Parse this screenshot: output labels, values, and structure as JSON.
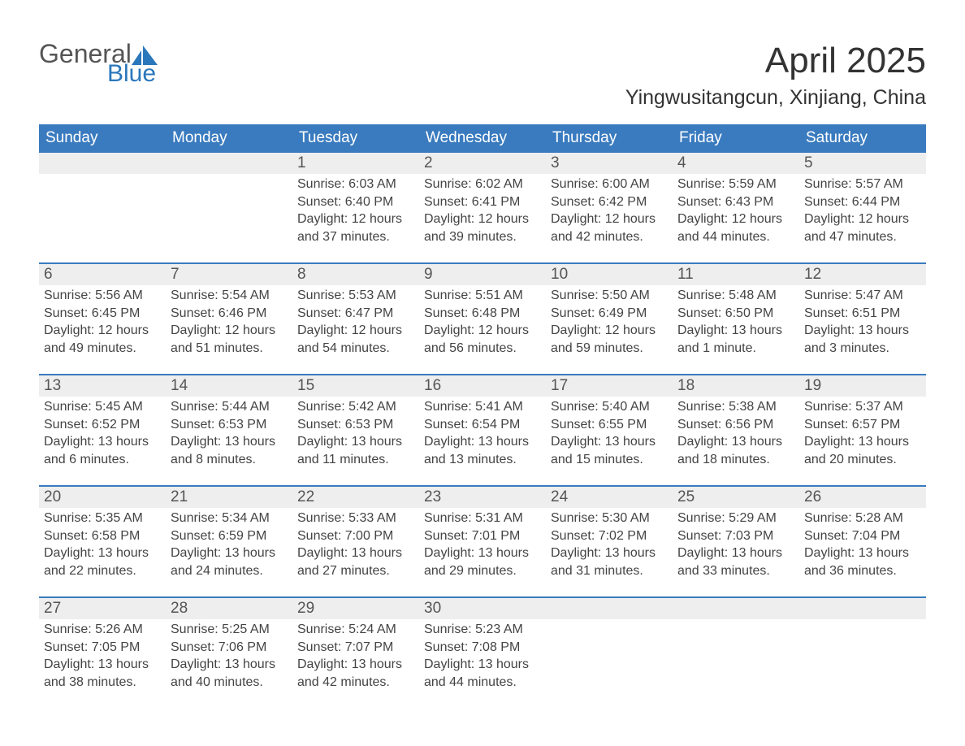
{
  "logo": {
    "word1": "General",
    "word2": "Blue",
    "icon_color": "#2a77bb",
    "text_gray": "#555555"
  },
  "header": {
    "title": "April 2025",
    "location": "Yingwusitangcun, Xinjiang, China",
    "title_fontsize": 44,
    "location_fontsize": 25,
    "title_color": "#333333"
  },
  "colors": {
    "header_row_bg": "#3a7bbf",
    "header_row_text": "#ffffff",
    "daynum_bg": "#eeeeee",
    "daynum_text": "#555555",
    "week_divider": "#3a7bbf",
    "body_text": "#444444",
    "page_bg": "#ffffff"
  },
  "fontsizes": {
    "dow": 19,
    "daynum": 19,
    "body": 16
  },
  "dow": [
    "Sunday",
    "Monday",
    "Tuesday",
    "Wednesday",
    "Thursday",
    "Friday",
    "Saturday"
  ],
  "weeks": [
    [
      null,
      null,
      {
        "n": "1",
        "sr": "Sunrise: 6:03 AM",
        "ss": "Sunset: 6:40 PM",
        "dl": "Daylight: 12 hours and 37 minutes."
      },
      {
        "n": "2",
        "sr": "Sunrise: 6:02 AM",
        "ss": "Sunset: 6:41 PM",
        "dl": "Daylight: 12 hours and 39 minutes."
      },
      {
        "n": "3",
        "sr": "Sunrise: 6:00 AM",
        "ss": "Sunset: 6:42 PM",
        "dl": "Daylight: 12 hours and 42 minutes."
      },
      {
        "n": "4",
        "sr": "Sunrise: 5:59 AM",
        "ss": "Sunset: 6:43 PM",
        "dl": "Daylight: 12 hours and 44 minutes."
      },
      {
        "n": "5",
        "sr": "Sunrise: 5:57 AM",
        "ss": "Sunset: 6:44 PM",
        "dl": "Daylight: 12 hours and 47 minutes."
      }
    ],
    [
      {
        "n": "6",
        "sr": "Sunrise: 5:56 AM",
        "ss": "Sunset: 6:45 PM",
        "dl": "Daylight: 12 hours and 49 minutes."
      },
      {
        "n": "7",
        "sr": "Sunrise: 5:54 AM",
        "ss": "Sunset: 6:46 PM",
        "dl": "Daylight: 12 hours and 51 minutes."
      },
      {
        "n": "8",
        "sr": "Sunrise: 5:53 AM",
        "ss": "Sunset: 6:47 PM",
        "dl": "Daylight: 12 hours and 54 minutes."
      },
      {
        "n": "9",
        "sr": "Sunrise: 5:51 AM",
        "ss": "Sunset: 6:48 PM",
        "dl": "Daylight: 12 hours and 56 minutes."
      },
      {
        "n": "10",
        "sr": "Sunrise: 5:50 AM",
        "ss": "Sunset: 6:49 PM",
        "dl": "Daylight: 12 hours and 59 minutes."
      },
      {
        "n": "11",
        "sr": "Sunrise: 5:48 AM",
        "ss": "Sunset: 6:50 PM",
        "dl": "Daylight: 13 hours and 1 minute."
      },
      {
        "n": "12",
        "sr": "Sunrise: 5:47 AM",
        "ss": "Sunset: 6:51 PM",
        "dl": "Daylight: 13 hours and 3 minutes."
      }
    ],
    [
      {
        "n": "13",
        "sr": "Sunrise: 5:45 AM",
        "ss": "Sunset: 6:52 PM",
        "dl": "Daylight: 13 hours and 6 minutes."
      },
      {
        "n": "14",
        "sr": "Sunrise: 5:44 AM",
        "ss": "Sunset: 6:53 PM",
        "dl": "Daylight: 13 hours and 8 minutes."
      },
      {
        "n": "15",
        "sr": "Sunrise: 5:42 AM",
        "ss": "Sunset: 6:53 PM",
        "dl": "Daylight: 13 hours and 11 minutes."
      },
      {
        "n": "16",
        "sr": "Sunrise: 5:41 AM",
        "ss": "Sunset: 6:54 PM",
        "dl": "Daylight: 13 hours and 13 minutes."
      },
      {
        "n": "17",
        "sr": "Sunrise: 5:40 AM",
        "ss": "Sunset: 6:55 PM",
        "dl": "Daylight: 13 hours and 15 minutes."
      },
      {
        "n": "18",
        "sr": "Sunrise: 5:38 AM",
        "ss": "Sunset: 6:56 PM",
        "dl": "Daylight: 13 hours and 18 minutes."
      },
      {
        "n": "19",
        "sr": "Sunrise: 5:37 AM",
        "ss": "Sunset: 6:57 PM",
        "dl": "Daylight: 13 hours and 20 minutes."
      }
    ],
    [
      {
        "n": "20",
        "sr": "Sunrise: 5:35 AM",
        "ss": "Sunset: 6:58 PM",
        "dl": "Daylight: 13 hours and 22 minutes."
      },
      {
        "n": "21",
        "sr": "Sunrise: 5:34 AM",
        "ss": "Sunset: 6:59 PM",
        "dl": "Daylight: 13 hours and 24 minutes."
      },
      {
        "n": "22",
        "sr": "Sunrise: 5:33 AM",
        "ss": "Sunset: 7:00 PM",
        "dl": "Daylight: 13 hours and 27 minutes."
      },
      {
        "n": "23",
        "sr": "Sunrise: 5:31 AM",
        "ss": "Sunset: 7:01 PM",
        "dl": "Daylight: 13 hours and 29 minutes."
      },
      {
        "n": "24",
        "sr": "Sunrise: 5:30 AM",
        "ss": "Sunset: 7:02 PM",
        "dl": "Daylight: 13 hours and 31 minutes."
      },
      {
        "n": "25",
        "sr": "Sunrise: 5:29 AM",
        "ss": "Sunset: 7:03 PM",
        "dl": "Daylight: 13 hours and 33 minutes."
      },
      {
        "n": "26",
        "sr": "Sunrise: 5:28 AM",
        "ss": "Sunset: 7:04 PM",
        "dl": "Daylight: 13 hours and 36 minutes."
      }
    ],
    [
      {
        "n": "27",
        "sr": "Sunrise: 5:26 AM",
        "ss": "Sunset: 7:05 PM",
        "dl": "Daylight: 13 hours and 38 minutes."
      },
      {
        "n": "28",
        "sr": "Sunrise: 5:25 AM",
        "ss": "Sunset: 7:06 PM",
        "dl": "Daylight: 13 hours and 40 minutes."
      },
      {
        "n": "29",
        "sr": "Sunrise: 5:24 AM",
        "ss": "Sunset: 7:07 PM",
        "dl": "Daylight: 13 hours and 42 minutes."
      },
      {
        "n": "30",
        "sr": "Sunrise: 5:23 AM",
        "ss": "Sunset: 7:08 PM",
        "dl": "Daylight: 13 hours and 44 minutes."
      },
      null,
      null,
      null
    ]
  ]
}
